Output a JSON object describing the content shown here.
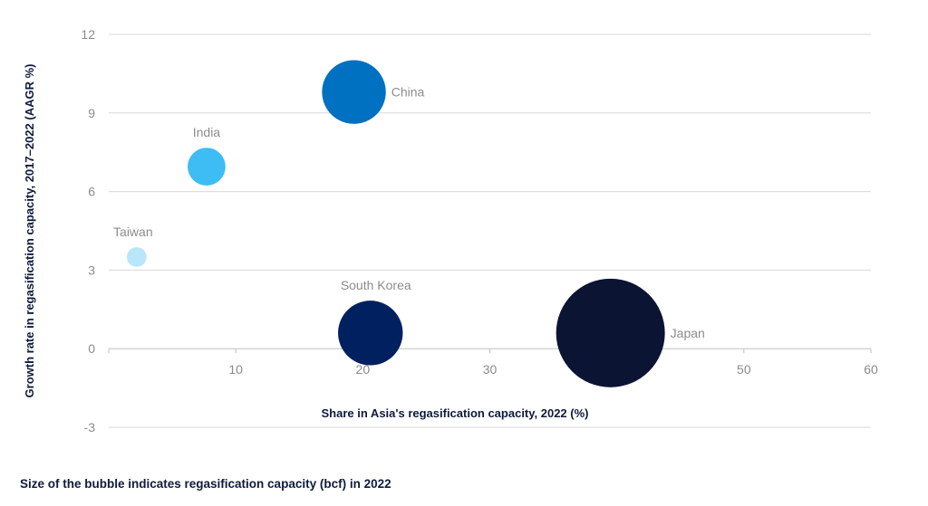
{
  "chart_data": {
    "type": "bubble",
    "xlabel": "Share in Asia's regasification capacity, 2022 (%)",
    "ylabel": "Growth rate in regasification capacity, 2017–2022 (AAGR %)",
    "xlim": [
      0,
      60
    ],
    "ylim": [
      -3,
      12
    ],
    "x_ticks": [
      10,
      20,
      30,
      40,
      50,
      60
    ],
    "y_ticks": [
      -3,
      0,
      3,
      6,
      9,
      12
    ],
    "grid": "horizontal",
    "points": [
      {
        "name": "Taiwan",
        "x": 2.2,
        "y": 3.5,
        "size": 1.0,
        "color": "#b8e6fb"
      },
      {
        "name": "India",
        "x": 7.7,
        "y": 6.95,
        "size": 3.7,
        "color": "#3dbdf4"
      },
      {
        "name": "China",
        "x": 19.3,
        "y": 9.8,
        "size": 10.5,
        "color": "#0070c0"
      },
      {
        "name": "South Korea",
        "x": 20.6,
        "y": 0.6,
        "size": 10.8,
        "color": "#002060"
      },
      {
        "name": "Japan",
        "x": 39.5,
        "y": 0.6,
        "size": 30.5,
        "color": "#0c1433"
      }
    ]
  },
  "footnote": "Size of the bubble indicates regasification capacity (bcf) in 2022"
}
